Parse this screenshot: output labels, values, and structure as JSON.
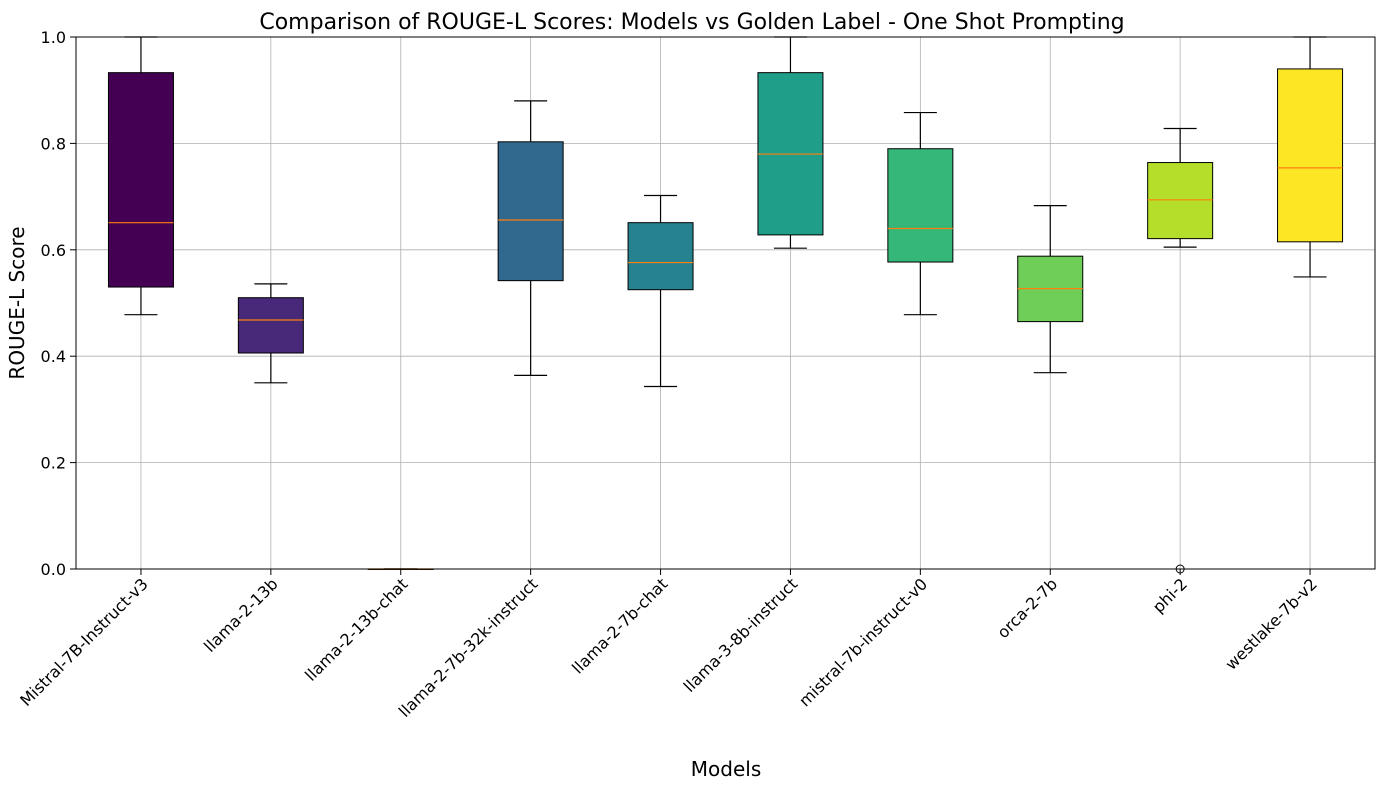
{
  "chart_data": {
    "type": "box",
    "title": "Comparison of ROUGE-L Scores: Models vs Golden Label - One Shot Prompting",
    "xlabel": "Models",
    "ylabel": "ROUGE-L Score",
    "ylim": [
      0,
      1.0
    ],
    "yticks": [
      "0.0",
      "0.2",
      "0.4",
      "0.6",
      "0.8",
      "1.0"
    ],
    "grid": true,
    "median_color": "#ff7f0e",
    "boxes": [
      {
        "category": "Mistral-7B-Instruct-v3",
        "color": "#440154",
        "whisker_low": 0.478,
        "q1": 0.53,
        "median": 0.651,
        "q3": 0.933,
        "whisker_high": 1.0,
        "outliers": []
      },
      {
        "category": "llama-2-13b",
        "color": "#482878",
        "whisker_low": 0.35,
        "q1": 0.406,
        "median": 0.468,
        "q3": 0.51,
        "whisker_high": 0.536,
        "outliers": []
      },
      {
        "category": "llama-2-13b-chat",
        "color": "#3e4989",
        "whisker_low": 0.0,
        "q1": 0.0,
        "median": 0.0,
        "q3": 0.0,
        "whisker_high": 0.0,
        "outliers": []
      },
      {
        "category": "llama-2-7b-32k-instruct",
        "color": "#31688e",
        "whisker_low": 0.364,
        "q1": 0.542,
        "median": 0.656,
        "q3": 0.803,
        "whisker_high": 0.88,
        "outliers": []
      },
      {
        "category": "llama-2-7b-chat",
        "color": "#26828e",
        "whisker_low": 0.343,
        "q1": 0.525,
        "median": 0.576,
        "q3": 0.651,
        "whisker_high": 0.702,
        "outliers": []
      },
      {
        "category": "llama-3-8b-instruct",
        "color": "#1f9e89",
        "whisker_low": 0.603,
        "q1": 0.628,
        "median": 0.78,
        "q3": 0.933,
        "whisker_high": 1.0,
        "outliers": []
      },
      {
        "category": "mistral-7b-instruct-v0",
        "color": "#35b779",
        "whisker_low": 0.478,
        "q1": 0.577,
        "median": 0.64,
        "q3": 0.79,
        "whisker_high": 0.858,
        "outliers": []
      },
      {
        "category": "orca-2-7b",
        "color": "#6ece58",
        "whisker_low": 0.369,
        "q1": 0.465,
        "median": 0.527,
        "q3": 0.588,
        "whisker_high": 0.683,
        "outliers": []
      },
      {
        "category": "phi-2",
        "color": "#b5de2b",
        "whisker_low": 0.605,
        "q1": 0.621,
        "median": 0.694,
        "q3": 0.764,
        "whisker_high": 0.828,
        "outliers": [
          0.0
        ]
      },
      {
        "category": "westlake-7b-v2",
        "color": "#fde725",
        "whisker_low": 0.549,
        "q1": 0.615,
        "median": 0.754,
        "q3": 0.94,
        "whisker_high": 1.0,
        "outliers": []
      }
    ]
  }
}
